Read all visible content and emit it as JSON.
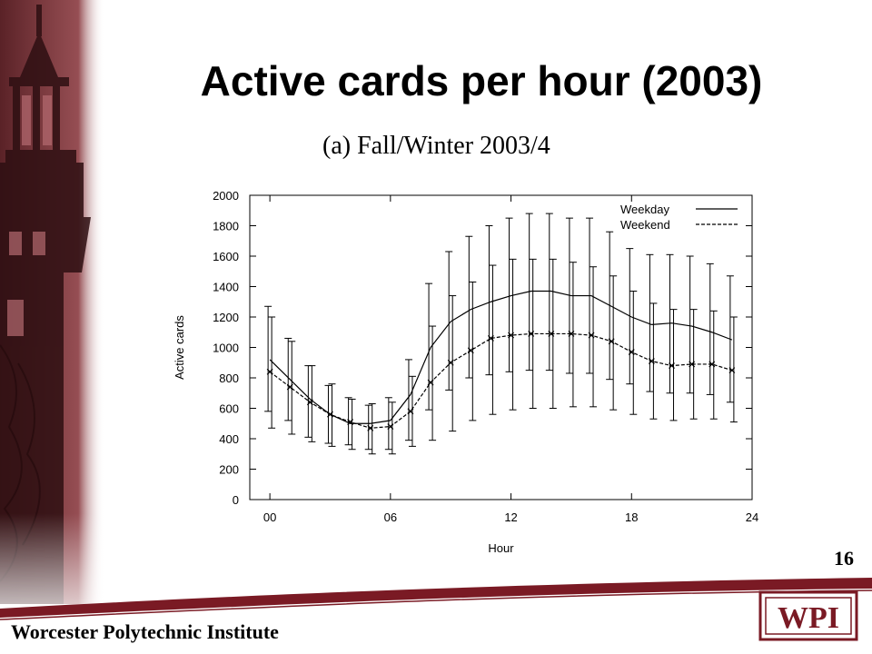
{
  "slide": {
    "title": "Active cards per hour (2003)",
    "subtitle": "(a) Fall/Winter 2003/4",
    "page_number": "16",
    "institute": "Worcester Polytechnic Institute",
    "logo_text": "WPI"
  },
  "colors": {
    "accent": "#7a1a24",
    "photo_dark": "#3a1518",
    "photo_mid": "#8a3a40",
    "text": "#000000"
  },
  "chart_data": {
    "type": "line",
    "xlabel": "Hour",
    "ylabel": "Active cards",
    "xlim": [
      -1,
      24
    ],
    "ylim": [
      0,
      2000
    ],
    "x_ticks": [
      0,
      6,
      12,
      18,
      24
    ],
    "x_tick_labels": [
      "00",
      "06",
      "12",
      "18",
      "24"
    ],
    "y_ticks": [
      0,
      200,
      400,
      600,
      800,
      1000,
      1200,
      1400,
      1600,
      1800,
      2000
    ],
    "y_tick_labels": [
      "0",
      "200",
      "400",
      "600",
      "800",
      "1000",
      "1200",
      "1400",
      "1600",
      "1800",
      "2000"
    ],
    "grid": false,
    "legend_position": "top-right",
    "x": [
      0,
      1,
      2,
      3,
      4,
      5,
      6,
      7,
      8,
      9,
      10,
      11,
      12,
      13,
      14,
      15,
      16,
      17,
      18,
      19,
      20,
      21,
      22,
      23
    ],
    "series": [
      {
        "name": "Weekday",
        "line_style": "solid",
        "marker": "none",
        "values": [
          920,
          790,
          660,
          560,
          500,
          500,
          520,
          690,
          1000,
          1170,
          1250,
          1300,
          1340,
          1370,
          1370,
          1340,
          1340,
          1270,
          1200,
          1150,
          1160,
          1140,
          1100,
          1050
        ],
        "err_low": [
          580,
          520,
          410,
          370,
          360,
          330,
          330,
          390,
          590,
          720,
          800,
          820,
          840,
          850,
          850,
          830,
          830,
          790,
          760,
          710,
          700,
          700,
          690,
          640
        ],
        "err_high": [
          1270,
          1060,
          880,
          750,
          670,
          620,
          670,
          920,
          1420,
          1630,
          1730,
          1800,
          1850,
          1880,
          1880,
          1850,
          1850,
          1760,
          1650,
          1610,
          1610,
          1600,
          1550,
          1470
        ]
      },
      {
        "name": "Weekend",
        "line_style": "dashed",
        "marker": "x",
        "values": [
          840,
          740,
          640,
          560,
          510,
          470,
          480,
          580,
          770,
          900,
          980,
          1060,
          1080,
          1090,
          1090,
          1090,
          1080,
          1040,
          970,
          910,
          880,
          890,
          890,
          850
        ],
        "err_low": [
          470,
          430,
          380,
          350,
          330,
          300,
          300,
          350,
          390,
          450,
          520,
          560,
          590,
          600,
          600,
          610,
          610,
          590,
          560,
          530,
          520,
          530,
          530,
          510
        ],
        "err_high": [
          1200,
          1040,
          880,
          760,
          660,
          630,
          640,
          810,
          1140,
          1340,
          1430,
          1540,
          1580,
          1580,
          1580,
          1560,
          1530,
          1470,
          1370,
          1290,
          1250,
          1250,
          1240,
          1200
        ]
      }
    ]
  }
}
